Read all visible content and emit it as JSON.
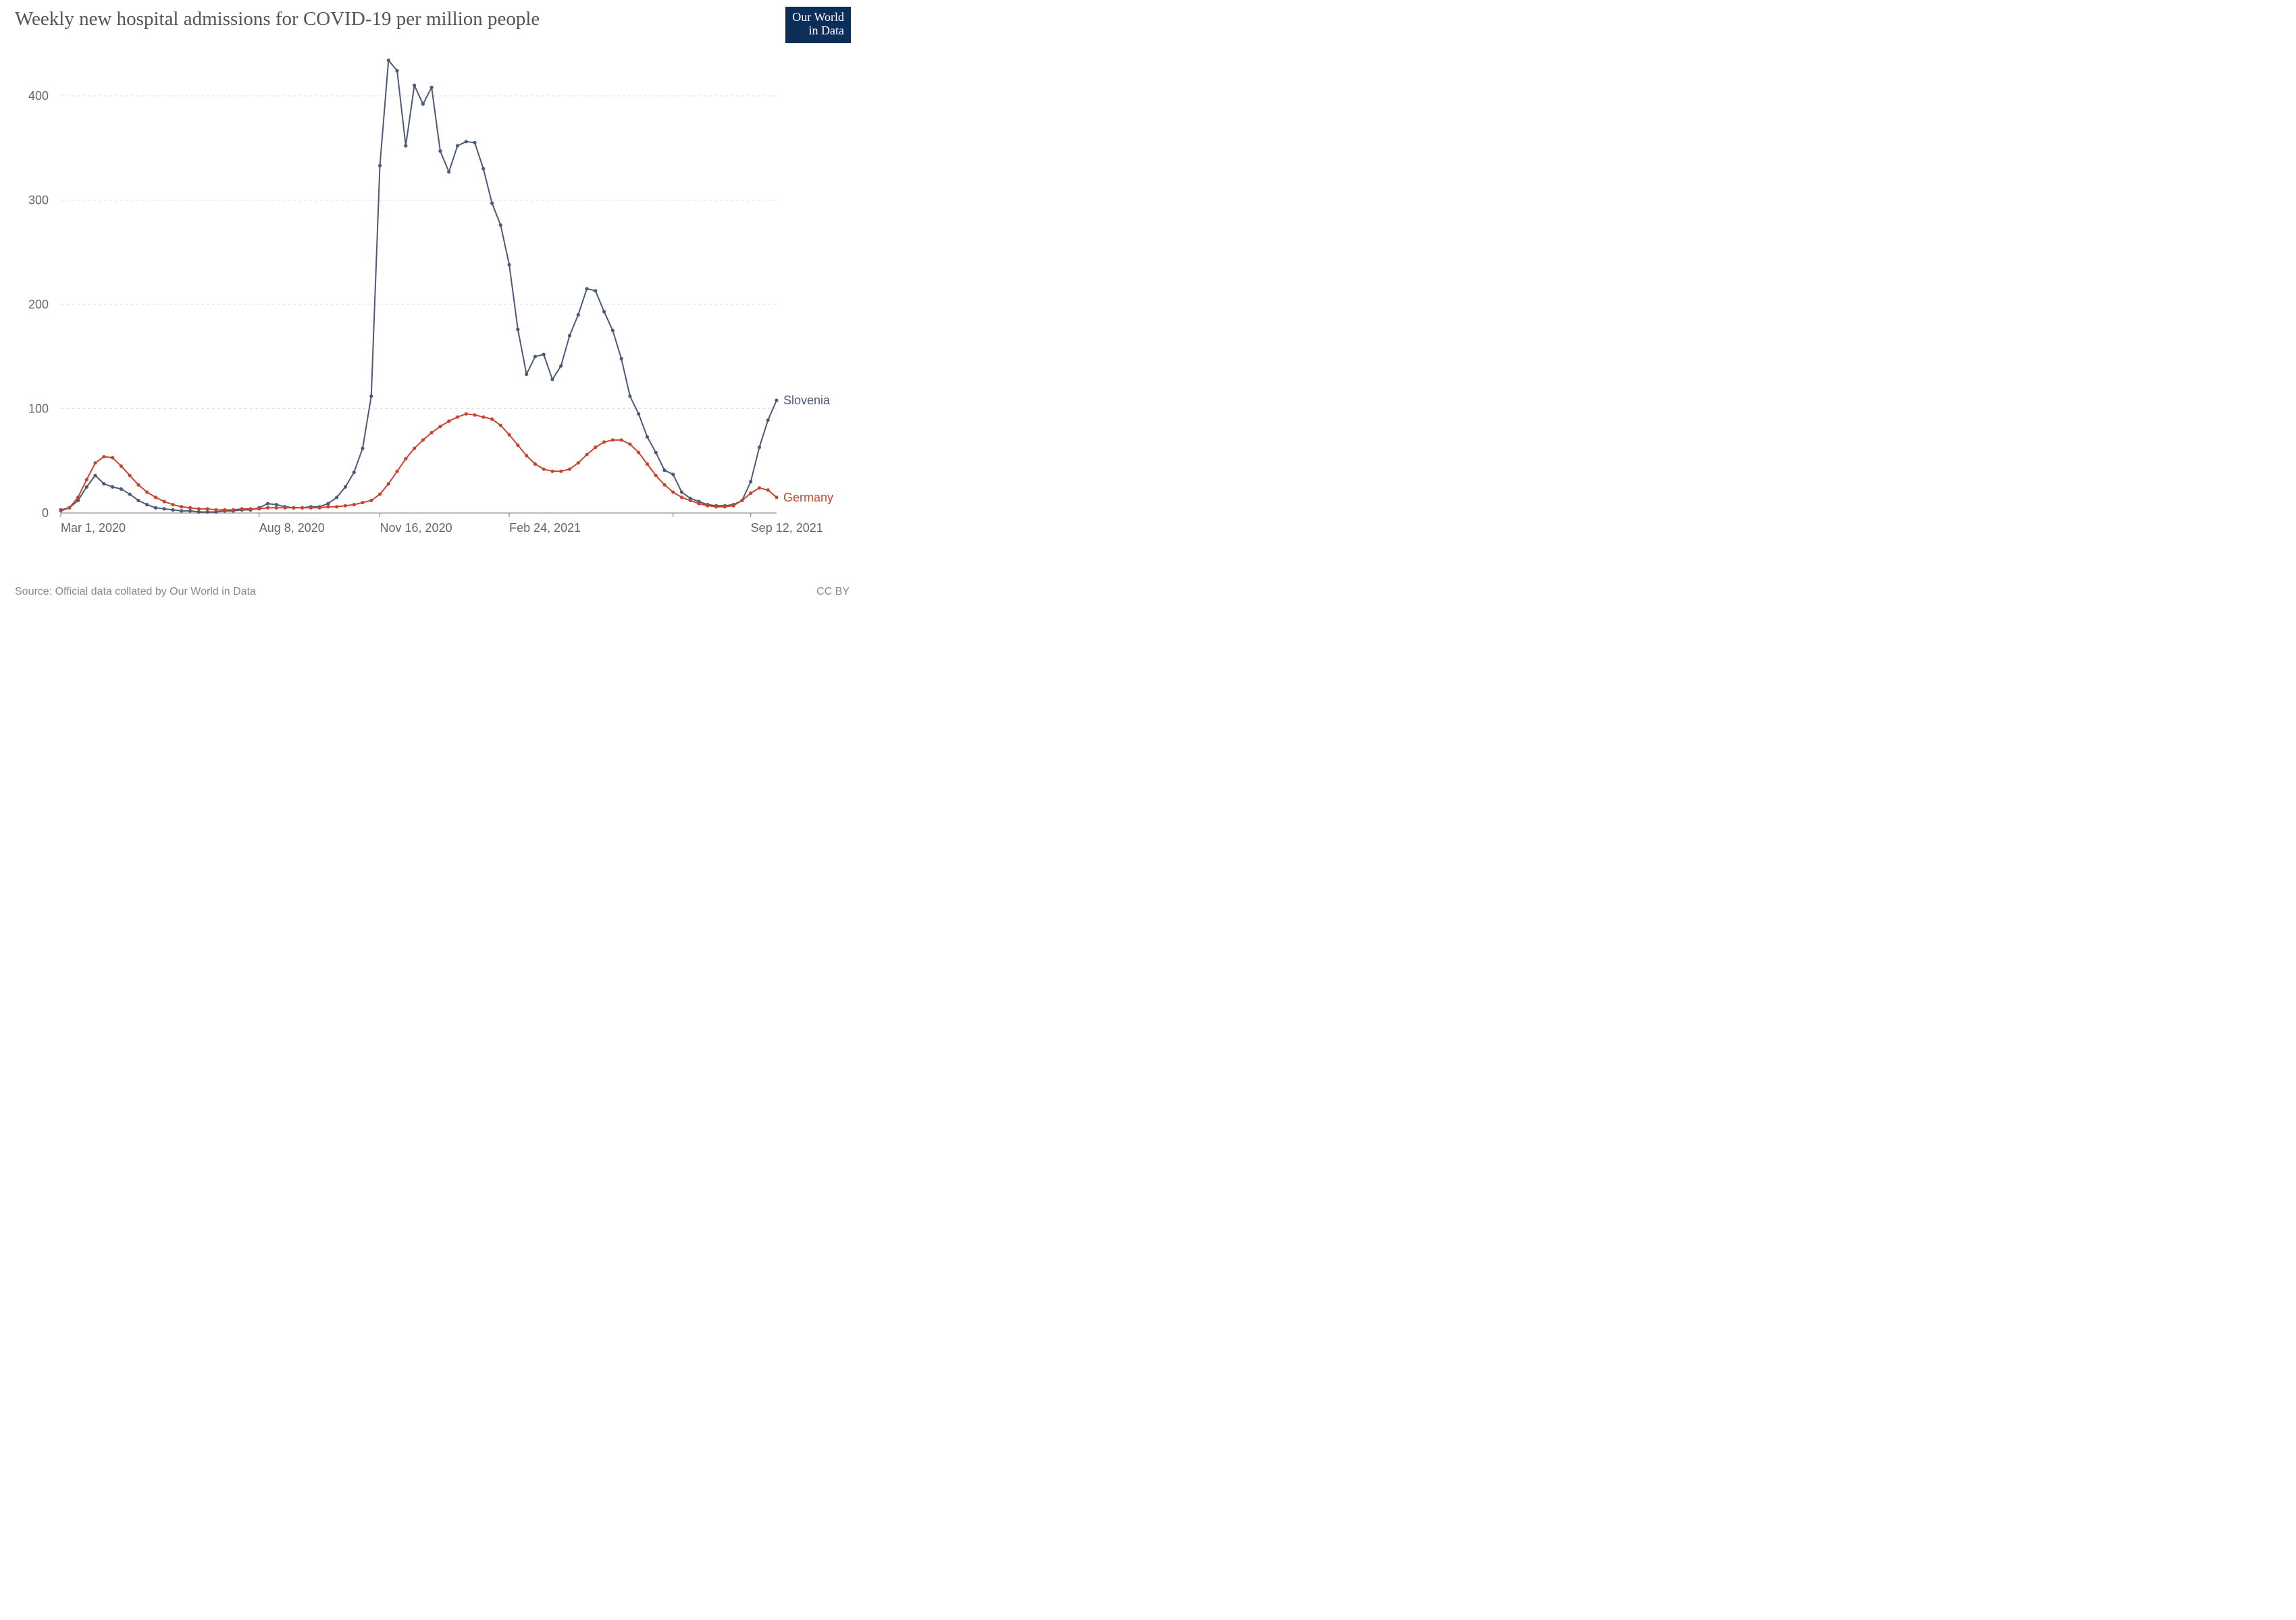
{
  "title": "Weekly new hospital admissions for COVID-19 per million people",
  "logo_line1": "Our World",
  "logo_line2": "in Data",
  "footer_source": "Source: Official data collated by Our World in Data",
  "footer_license": "CC BY",
  "chart": {
    "type": "line",
    "background_color": "#ffffff",
    "grid_color": "#dddddd",
    "grid_dash": "4,4",
    "axis_line_color": "#777777",
    "axis_font_color": "#666666",
    "axis_fontsize": 18,
    "title_fontsize": 29,
    "title_color": "#555555",
    "marker_radius": 2.6,
    "line_width": 2.0,
    "x_index_range": [
      0,
      83
    ],
    "y_range": [
      0,
      440
    ],
    "y_ticks": [
      0,
      100,
      200,
      300,
      400
    ],
    "x_ticks": [
      {
        "i": 0,
        "label": "Mar 1, 2020"
      },
      {
        "i": 23,
        "label": "Aug 8, 2020"
      },
      {
        "i": 37,
        "label": "Nov 16, 2020"
      },
      {
        "i": 52,
        "label": "Feb 24, 2021"
      },
      {
        "i": 71,
        "label": ""
      },
      {
        "i": 80,
        "label": "Sep 12, 2021"
      }
    ],
    "series": [
      {
        "name": "Slovenia",
        "label": "Slovenia",
        "color": "#4c5a78",
        "values": [
          3,
          5,
          12,
          25,
          36,
          28,
          25,
          23,
          18,
          12,
          8,
          5,
          4,
          3,
          2,
          2,
          1,
          1,
          1,
          2,
          2,
          3,
          3,
          5,
          9,
          8,
          6,
          5,
          5,
          6,
          6,
          9,
          15,
          25,
          39,
          62,
          112,
          333,
          434,
          424,
          352,
          410,
          392,
          408,
          347,
          327,
          352,
          356,
          355,
          330,
          297,
          276,
          238,
          176,
          133,
          150,
          152,
          128,
          141,
          170,
          190,
          215,
          213,
          193,
          175,
          148,
          112,
          95,
          73,
          58,
          41,
          37,
          20,
          14,
          11,
          8,
          7,
          7,
          8,
          12,
          30,
          63,
          89,
          108
        ]
      },
      {
        "name": "Germany",
        "label": "Germany",
        "color": "#c8452d",
        "values": [
          2,
          5,
          15,
          32,
          48,
          54,
          53,
          45,
          36,
          27,
          20,
          15,
          11,
          8,
          6,
          5,
          4,
          4,
          3,
          3,
          3,
          4,
          4,
          4,
          5,
          5,
          5,
          5,
          5,
          5,
          5,
          6,
          6,
          7,
          8,
          10,
          12,
          18,
          28,
          40,
          52,
          62,
          70,
          77,
          83,
          88,
          92,
          95,
          94,
          92,
          90,
          84,
          75,
          65,
          55,
          47,
          42,
          40,
          40,
          42,
          48,
          56,
          63,
          68,
          70,
          70,
          66,
          58,
          47,
          36,
          27,
          20,
          15,
          12,
          9,
          7,
          6,
          6,
          7,
          12,
          19,
          24,
          22,
          15
        ]
      }
    ]
  }
}
